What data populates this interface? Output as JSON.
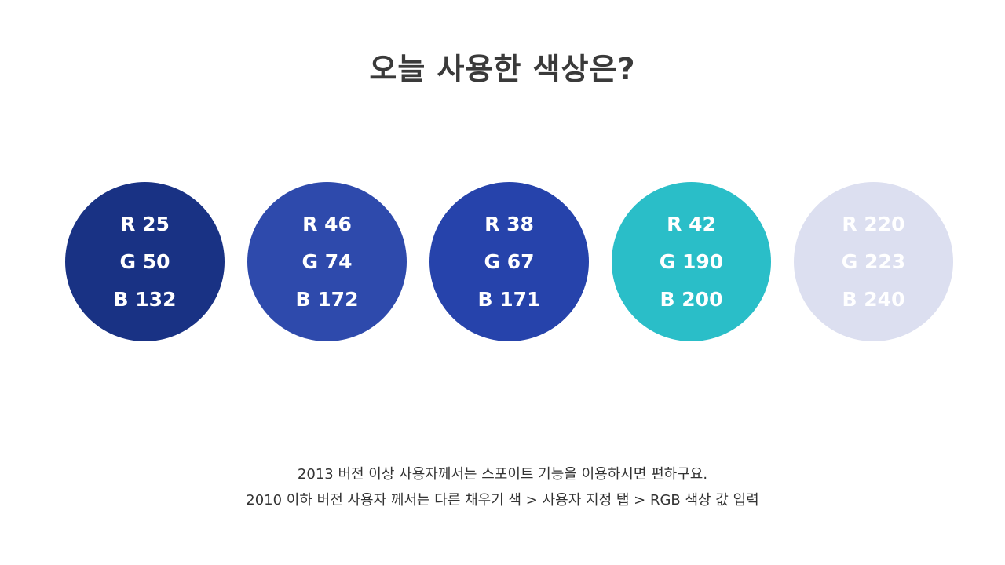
{
  "title": "오늘 사용한 색상은?",
  "swatches": [
    {
      "color": "#193284",
      "r": "R 25",
      "g": "G 50",
      "b": "B 132"
    },
    {
      "color": "#2e4aac",
      "r": "R 46",
      "g": "G 74",
      "b": "B 172"
    },
    {
      "color": "#2643ab",
      "r": "R 38",
      "g": "G 67",
      "b": "B 171"
    },
    {
      "color": "#2abec8",
      "r": "R 42",
      "g": "G 190",
      "b": "B 200"
    },
    {
      "color": "#dcdff0",
      "r": "R 220",
      "g": "G 223",
      "b": "B 240"
    }
  ],
  "notes": {
    "line1": "2013 버전 이상 사용자께서는 스포이트 기능을 이용하시면 편하구요.",
    "line2": "2010 이하 버전 사용자 께서는 다른 채우기 색 > 사용자 지정 탭 > RGB 색상 값 입력"
  }
}
